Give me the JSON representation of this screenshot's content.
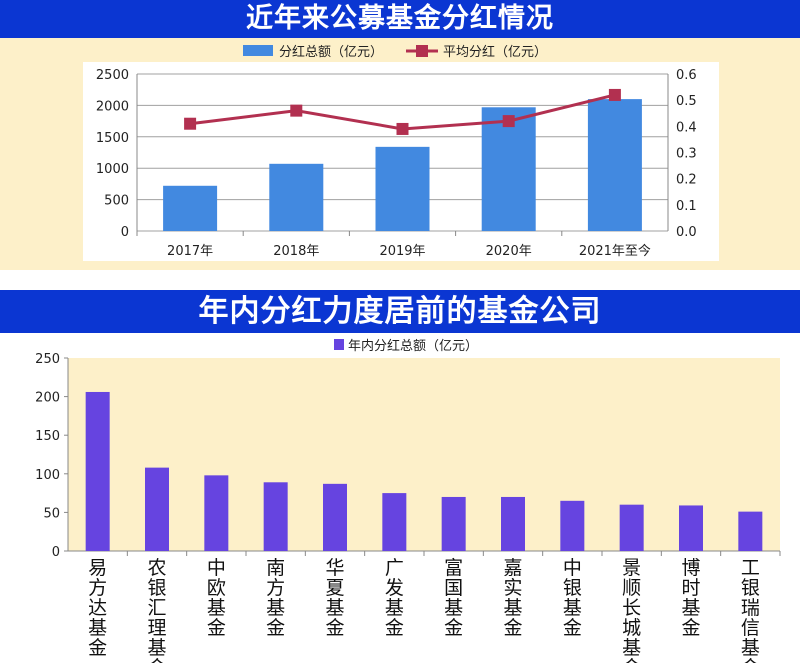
{
  "chart_data": [
    {
      "type": "bar+line",
      "title": "近年来公募基金分红情况",
      "categories": [
        "2017年",
        "2018年",
        "2019年",
        "2020年",
        "2021年至今"
      ],
      "series": [
        {
          "name": "分红总额（亿元）",
          "type": "bar",
          "axis": "left",
          "color": "#4289e0",
          "values": [
            720,
            1070,
            1340,
            1970,
            2100
          ]
        },
        {
          "name": "平均分红（亿元）",
          "type": "line",
          "axis": "right",
          "color": "#b23050",
          "values": [
            0.41,
            0.46,
            0.39,
            0.42,
            0.52
          ]
        }
      ],
      "ylim": [
        0,
        2500
      ],
      "yticks": [
        "0",
        "500",
        "1000",
        "1500",
        "2000",
        "2500"
      ],
      "y2lim": [
        0,
        0.6
      ],
      "y2ticks": [
        "0.0",
        "0.1",
        "0.2",
        "0.3",
        "0.4",
        "0.5",
        "0.6"
      ],
      "legend": "top",
      "grid": true
    },
    {
      "type": "bar",
      "title": "年内分红力度居前的基金公司",
      "categories": [
        "易方达基金",
        "农银汇理基金",
        "中欧基金",
        "南方基金",
        "华夏基金",
        "广发基金",
        "富国基金",
        "嘉实基金",
        "中银基金",
        "景顺长城基金",
        "博时基金",
        "工银瑞信基金"
      ],
      "series": [
        {
          "name": "年内分红总额（亿元）",
          "color": "#6644e0",
          "values": [
            206,
            108,
            98,
            89,
            87,
            75,
            70,
            70,
            65,
            60,
            59,
            51
          ]
        }
      ],
      "ylim": [
        0,
        250
      ],
      "yticks": [
        "0",
        "50",
        "100",
        "150",
        "200",
        "250"
      ],
      "legend": "top",
      "grid": false
    }
  ]
}
